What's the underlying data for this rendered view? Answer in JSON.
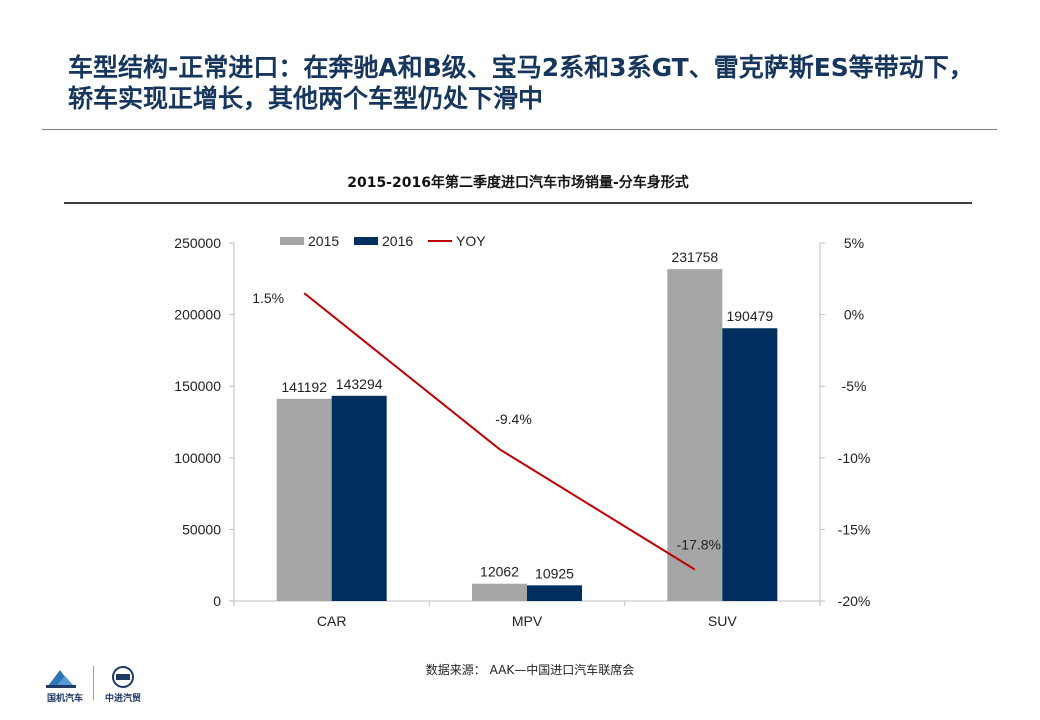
{
  "slide": {
    "title": "车型结构-正常进口：在奔驰A和B级、宝马2系和3系GT、雷克萨斯ES等带动下，轿车实现正增长，其他两个车型仍处下滑中",
    "source": "数据来源： AAK—中国进口汽车联席会",
    "logos": {
      "left": "国机汽车",
      "right": "中进汽贸"
    }
  },
  "chart_data": {
    "type": "bar",
    "title": "2015-2016年第二季度进口汽车市场销量-分车身形式",
    "categories": [
      "CAR",
      "MPV",
      "SUV"
    ],
    "series": [
      {
        "name": "2015",
        "type": "bar",
        "axis": "left",
        "color": "#a6a6a6",
        "values": [
          141192,
          12062,
          231758
        ],
        "labels": [
          "141192",
          "12062",
          "231758"
        ]
      },
      {
        "name": "2016",
        "type": "bar",
        "axis": "left",
        "color": "#002f5f",
        "values": [
          143294,
          10925,
          190479
        ],
        "labels": [
          "143294",
          "10925",
          "190479"
        ]
      },
      {
        "name": "YOY",
        "type": "line",
        "axis": "right",
        "color": "#c00000",
        "values": [
          1.5,
          -9.4,
          -17.8
        ],
        "labels": [
          "1.5%",
          "-9.4%",
          "-17.8%"
        ]
      }
    ],
    "ylim": [
      0,
      250000
    ],
    "yticks": [
      "0",
      "50000",
      "100000",
      "150000",
      "200000",
      "250000"
    ],
    "y2lim": [
      -20,
      5
    ],
    "y2ticks": [
      "-20%",
      "-15%",
      "-10%",
      "-5%",
      "0%",
      "5%"
    ],
    "legend": "top",
    "grid": false
  }
}
